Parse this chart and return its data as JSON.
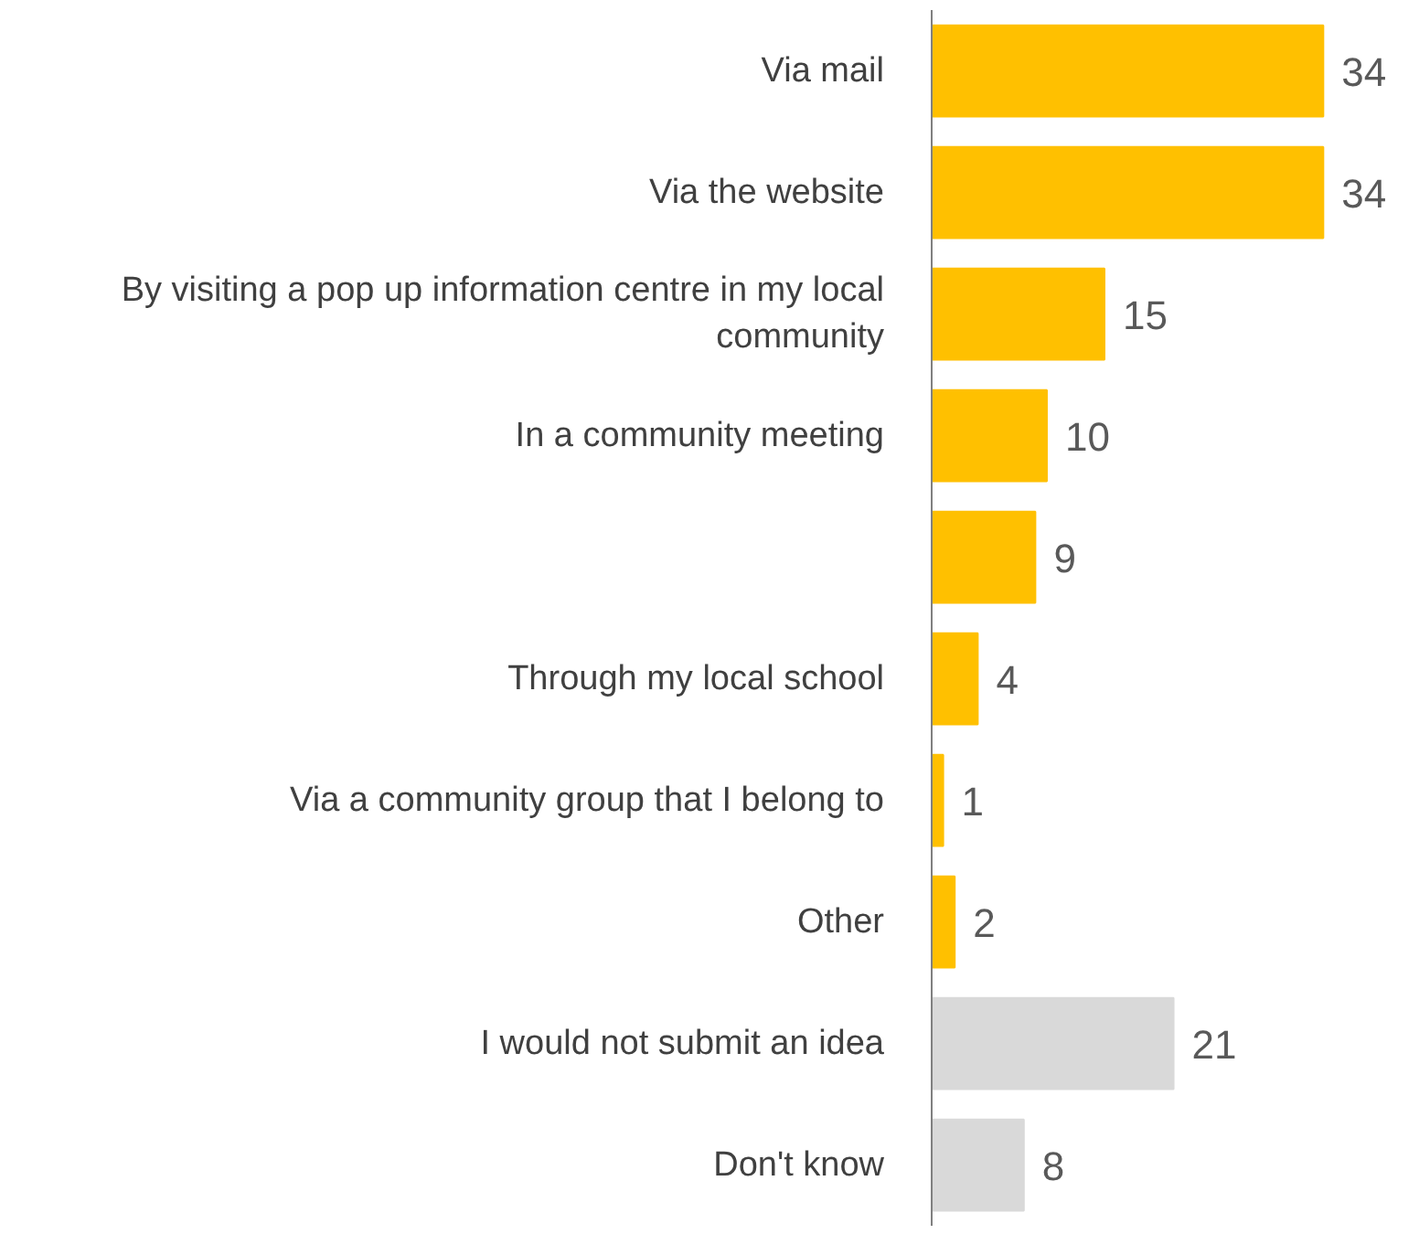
{
  "chart_data": {
    "type": "bar",
    "orientation": "horizontal",
    "categories": [
      "Via mail",
      "Via the website",
      "By visiting a pop up information centre in my local community",
      "In a community meeting",
      null,
      "Through my local school",
      "Via a community group that I belong to",
      "Other",
      "I would not submit an idea",
      "Don't know"
    ],
    "values": [
      34,
      34,
      15,
      10,
      9,
      4,
      1,
      2,
      21,
      8
    ],
    "colors": [
      "#ffc000",
      "#ffc000",
      "#ffc000",
      "#ffc000",
      "#ffc000",
      "#ffc000",
      "#ffc000",
      "#ffc000",
      "#d9d9d9",
      "#d9d9d9"
    ],
    "data_labels": true,
    "grid": false
  }
}
